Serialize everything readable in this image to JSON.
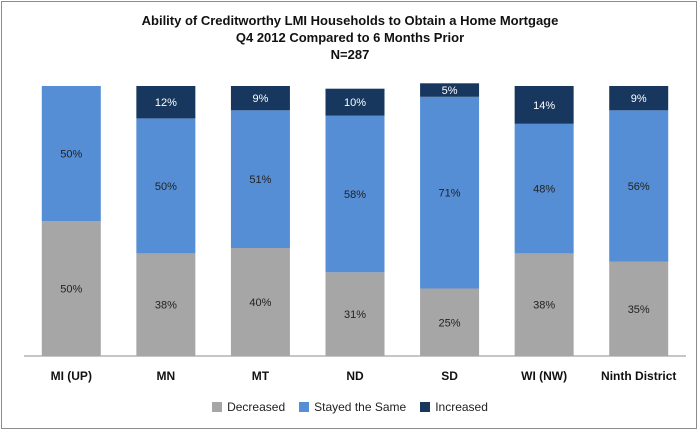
{
  "chart_data": {
    "type": "bar",
    "stacked": true,
    "percent": true,
    "title": "Ability of Creditworthy LMI Households to Obtain a Home Mortgage",
    "subtitle": "Q4 2012 Compared to 6 Months Prior",
    "subtitle2": "N=287",
    "categories": [
      "MI (UP)",
      "MN",
      "MT",
      "ND",
      "SD",
      "WI (NW)",
      "Ninth District"
    ],
    "series": [
      {
        "name": "Decreased",
        "color": "#a6a6a6",
        "values": [
          50,
          38,
          40,
          31,
          25,
          38,
          35
        ],
        "labels": [
          "50%",
          "38%",
          "40%",
          "31%",
          "25%",
          "38%",
          "35%"
        ]
      },
      {
        "name": "Stayed the Same",
        "color": "#558ed5",
        "values": [
          50,
          50,
          51,
          58,
          71,
          48,
          56
        ],
        "labels": [
          "50%",
          "50%",
          "51%",
          "58%",
          "71%",
          "48%",
          "56%"
        ]
      },
      {
        "name": "Increased",
        "color": "#17375e",
        "values": [
          0,
          12,
          9,
          10,
          5,
          14,
          9
        ],
        "labels": [
          "",
          "12%",
          "9%",
          "10%",
          "5%",
          "14%",
          "9%"
        ]
      }
    ],
    "ylim": [
      0,
      100
    ],
    "legend": "bottom",
    "grid": false
  }
}
